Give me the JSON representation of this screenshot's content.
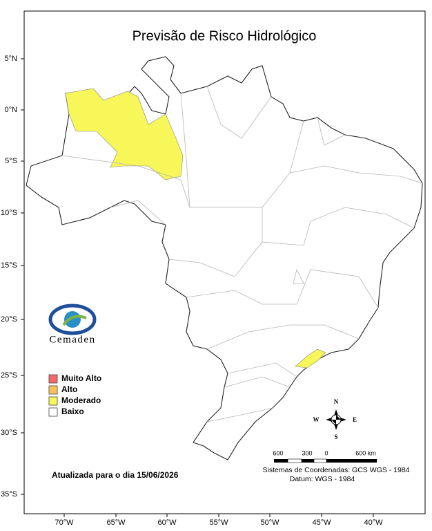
{
  "header": {
    "title": "Previsão de Risco Hidrológico"
  },
  "axes": {
    "lat_ticks": [
      "5°N",
      "0°N",
      "5°S",
      "10°S",
      "15°S",
      "20°S",
      "25°S",
      "30°S",
      "35°S"
    ],
    "lon_ticks": [
      "70°W",
      "65°W",
      "60°W",
      "55°W",
      "50°W",
      "45°W",
      "40°W"
    ]
  },
  "legend": {
    "items": [
      {
        "label": "Muito Alto",
        "color": "#f26a6a"
      },
      {
        "label": "Alto",
        "color": "#f7c25a"
      },
      {
        "label": "Moderado",
        "color": "#f7f75a"
      },
      {
        "label": "Baixo",
        "color": "#ffffff"
      }
    ]
  },
  "logo": {
    "text": "Cemaden"
  },
  "footer": {
    "updated": "Atualizada para o dia 15/06/2026"
  },
  "scale": {
    "labels": [
      "600",
      "300",
      "0",
      "600 km"
    ]
  },
  "datum": {
    "line1": "Sistemas de Coordenadas: GCS WGS - 1984",
    "line2": "Datum: WGS - 1984"
  },
  "compass": {
    "n": "N",
    "s": "S",
    "e": "E",
    "w": "W"
  }
}
